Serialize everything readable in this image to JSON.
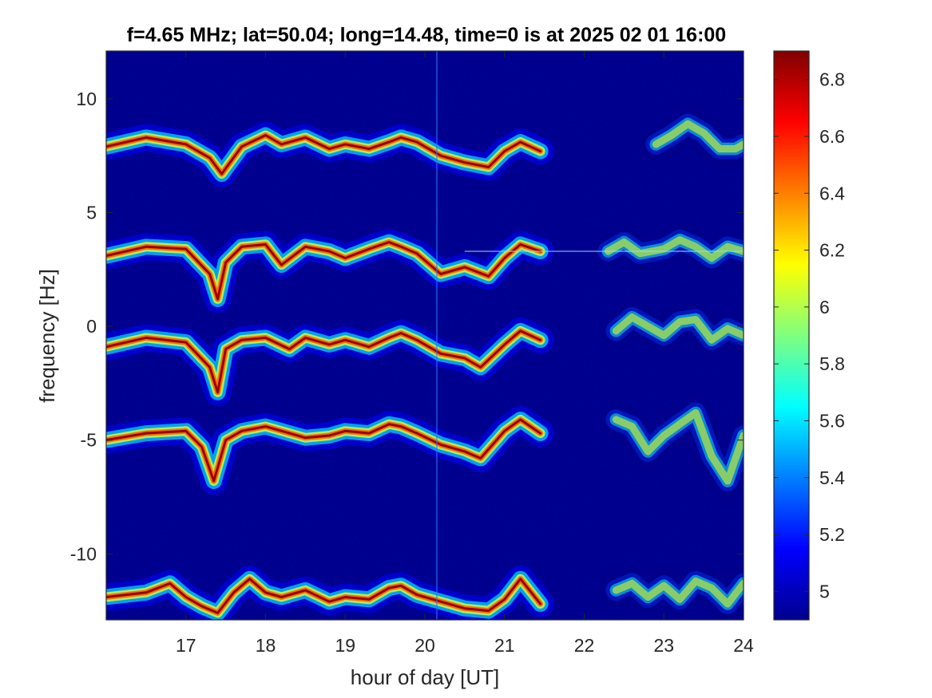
{
  "chart_data": {
    "type": "heatmap",
    "title": "f=4.65 MHz;  lat=50.04; long=14.48, time=0 is at 2025 02 01 16:00",
    "xlabel": "hour of day [UT]",
    "ylabel": "frequency [Hz]",
    "xlim": [
      16.0,
      24.0
    ],
    "ylim": [
      -12.9,
      12.1
    ],
    "xticks": [
      17,
      18,
      19,
      20,
      21,
      22,
      23,
      24
    ],
    "xtick_labels": [
      "17",
      "18",
      "19",
      "20",
      "21",
      "22",
      "23",
      "24"
    ],
    "yticks": [
      10,
      5,
      0,
      -5,
      -10
    ],
    "ytick_labels": [
      "10",
      "5",
      "0",
      "-5",
      "-10"
    ],
    "colorbar": {
      "colormap": "jet",
      "range": [
        4.9,
        6.9
      ],
      "ticks": [
        6.8,
        6.6,
        6.4,
        6.2,
        6.0,
        5.8,
        5.6,
        5.4,
        5.2,
        5.0
      ],
      "tick_labels": [
        "6.8",
        "6.6",
        "6.4",
        "6.2",
        "6",
        "5.8",
        "5.6",
        "5.4",
        "5.2",
        "5"
      ]
    },
    "background_value": 4.95,
    "trace_intensity_peak": 6.85,
    "traces": [
      {
        "segments": [
          {
            "x": [
              16.0,
              16.5,
              17.0,
              17.3,
              17.45,
              17.7,
              18.0,
              18.2,
              18.5,
              18.8,
              19.0,
              19.3,
              19.55,
              19.7,
              19.9,
              20.2,
              20.5,
              20.8,
              21.0,
              21.2,
              21.45
            ],
            "y": [
              7.9,
              8.3,
              8.0,
              7.4,
              6.7,
              7.9,
              8.4,
              8.0,
              8.3,
              7.8,
              8.0,
              7.8,
              8.1,
              8.3,
              8.1,
              7.5,
              7.2,
              7.0,
              7.7,
              8.1,
              7.7
            ]
          },
          {
            "x": [
              22.9,
              23.1,
              23.3,
              23.5,
              23.7,
              23.9,
              24.0
            ],
            "y": [
              8.0,
              8.4,
              8.9,
              8.5,
              7.8,
              7.8,
              8.0
            ]
          }
        ]
      },
      {
        "segments": [
          {
            "x": [
              16.0,
              16.5,
              17.0,
              17.3,
              17.4,
              17.5,
              17.7,
              18.0,
              18.2,
              18.5,
              18.8,
              19.0,
              19.3,
              19.55,
              19.7,
              19.9,
              20.2,
              20.5,
              20.8,
              21.0,
              21.2,
              21.45
            ],
            "y": [
              3.1,
              3.5,
              3.4,
              2.3,
              1.2,
              2.8,
              3.5,
              3.6,
              2.7,
              3.5,
              3.3,
              3.0,
              3.4,
              3.7,
              3.5,
              3.2,
              2.3,
              2.6,
              2.2,
              3.0,
              3.6,
              3.3
            ]
          },
          {
            "x": [
              22.3,
              22.5,
              22.7,
              23.0,
              23.2,
              23.4,
              23.6,
              23.8,
              24.0
            ],
            "y": [
              3.3,
              3.7,
              3.2,
              3.4,
              3.8,
              3.5,
              3.0,
              3.5,
              3.3
            ]
          }
        ]
      },
      {
        "segments": [
          {
            "x": [
              16.0,
              16.5,
              17.0,
              17.3,
              17.4,
              17.5,
              17.7,
              18.0,
              18.3,
              18.5,
              18.8,
              19.0,
              19.3,
              19.55,
              19.7,
              19.9,
              20.2,
              20.5,
              20.7,
              21.0,
              21.2,
              21.45
            ],
            "y": [
              -0.9,
              -0.5,
              -0.7,
              -1.8,
              -2.9,
              -1.0,
              -0.6,
              -0.5,
              -1.0,
              -0.5,
              -0.8,
              -0.6,
              -0.9,
              -0.5,
              -0.3,
              -0.6,
              -1.2,
              -1.4,
              -1.8,
              -0.8,
              -0.2,
              -0.6
            ]
          },
          {
            "x": [
              22.4,
              22.6,
              22.8,
              23.0,
              23.2,
              23.4,
              23.6,
              23.8,
              24.0
            ],
            "y": [
              -0.2,
              0.4,
              0.0,
              -0.4,
              0.2,
              0.3,
              -0.6,
              -0.1,
              -0.4
            ]
          }
        ]
      },
      {
        "segments": [
          {
            "x": [
              16.0,
              16.5,
              17.0,
              17.2,
              17.35,
              17.5,
              17.7,
              18.0,
              18.3,
              18.5,
              18.8,
              19.0,
              19.3,
              19.55,
              19.7,
              19.9,
              20.2,
              20.5,
              20.7,
              21.0,
              21.2,
              21.45
            ],
            "y": [
              -5.0,
              -4.7,
              -4.6,
              -5.3,
              -6.8,
              -5.0,
              -4.6,
              -4.4,
              -4.7,
              -4.9,
              -4.8,
              -4.6,
              -4.7,
              -4.3,
              -4.4,
              -4.7,
              -5.2,
              -5.5,
              -5.8,
              -4.6,
              -4.1,
              -4.7
            ]
          },
          {
            "x": [
              22.4,
              22.6,
              22.8,
              23.0,
              23.2,
              23.4,
              23.6,
              23.8,
              24.0
            ],
            "y": [
              -4.1,
              -4.4,
              -5.5,
              -4.8,
              -4.3,
              -3.8,
              -5.7,
              -6.8,
              -4.8
            ]
          }
        ]
      },
      {
        "segments": [
          {
            "x": [
              16.0,
              16.5,
              16.8,
              17.0,
              17.2,
              17.4,
              17.6,
              17.8,
              18.0,
              18.2,
              18.5,
              18.8,
              19.0,
              19.3,
              19.55,
              19.7,
              19.9,
              20.2,
              20.5,
              20.8,
              21.0,
              21.2,
              21.45
            ],
            "y": [
              -11.9,
              -11.7,
              -11.3,
              -11.9,
              -12.3,
              -12.6,
              -11.7,
              -11.1,
              -11.7,
              -11.9,
              -11.6,
              -12.1,
              -11.9,
              -12.0,
              -11.5,
              -11.4,
              -11.8,
              -12.1,
              -12.4,
              -12.5,
              -12.0,
              -11.1,
              -12.2
            ]
          },
          {
            "x": [
              22.4,
              22.6,
              22.8,
              23.0,
              23.2,
              23.4,
              23.6,
              23.8,
              24.0
            ],
            "y": [
              -11.6,
              -11.3,
              -11.9,
              -11.4,
              -12.0,
              -11.2,
              -11.5,
              -12.2,
              -11.3
            ]
          }
        ]
      }
    ],
    "faint_line": {
      "y": 3.3,
      "x_range": [
        20.5,
        24.0
      ]
    }
  }
}
